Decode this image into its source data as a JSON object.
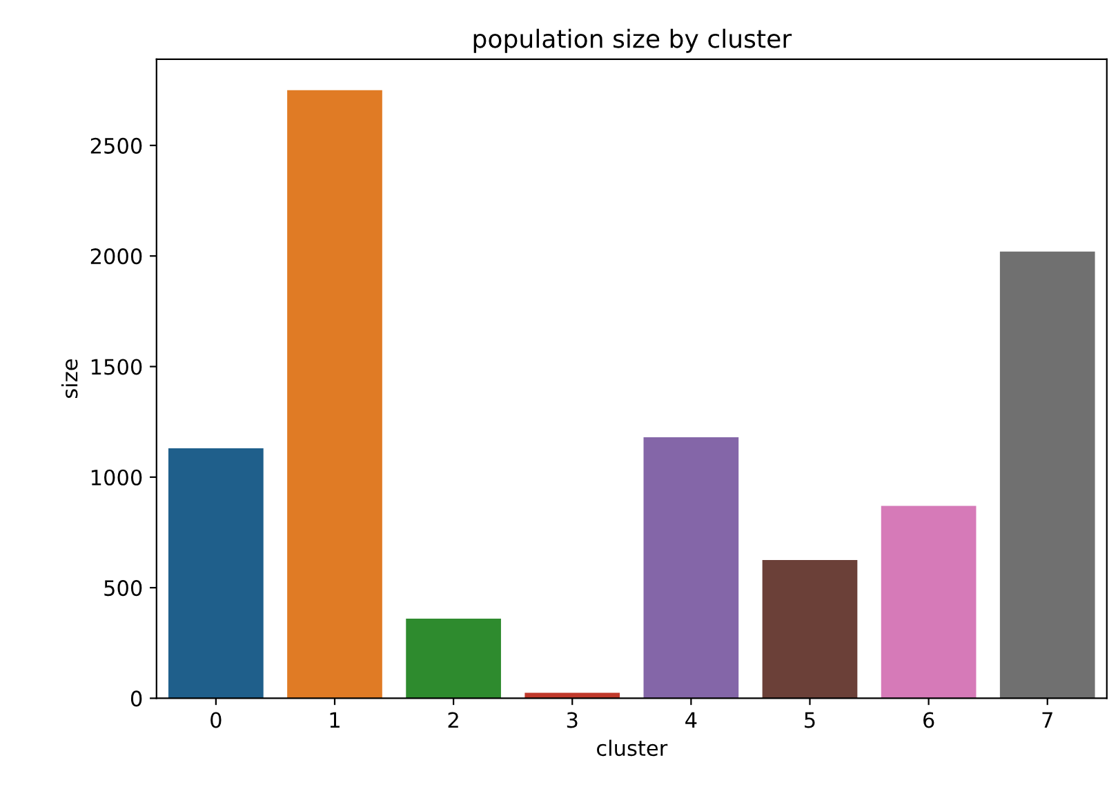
{
  "chart_data": {
    "type": "bar",
    "title": "population size by cluster",
    "xlabel": "cluster",
    "ylabel": "size",
    "categories": [
      "0",
      "1",
      "2",
      "3",
      "4",
      "5",
      "6",
      "7"
    ],
    "values": [
      1130,
      2750,
      360,
      25,
      1180,
      625,
      870,
      2020
    ],
    "colors": [
      "#1f5f8b",
      "#e07b25",
      "#2e8b2e",
      "#c0392b",
      "#8466a8",
      "#6b4038",
      "#d67ab8",
      "#707070"
    ],
    "ylim": [
      0,
      2890
    ],
    "yticks": [
      0,
      500,
      1000,
      1500,
      2000,
      2500
    ],
    "grid": false
  }
}
